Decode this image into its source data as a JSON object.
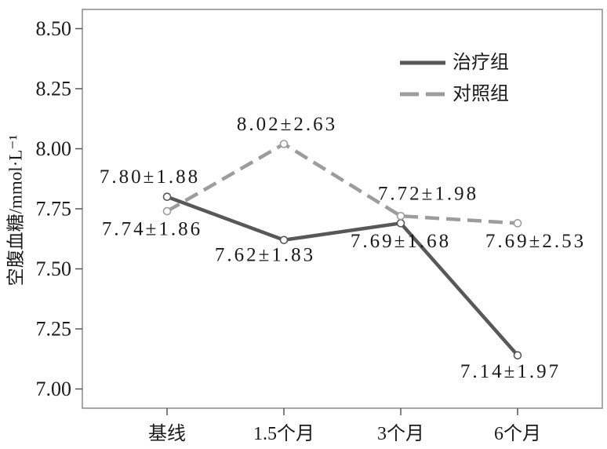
{
  "chart_data": {
    "type": "line",
    "ylabel": "空腹血糖/mmol·L⁻¹",
    "categories": [
      "基线",
      "1.5个月",
      "3个月",
      "6个月"
    ],
    "yticks": [
      "7.00",
      "7.25",
      "7.50",
      "7.75",
      "8.00",
      "8.25",
      "8.50"
    ],
    "ylim": [
      6.92,
      8.58
    ],
    "grid": false,
    "legend": "top-right",
    "series": [
      {
        "name": "治疗组",
        "values": [
          7.8,
          7.62,
          7.69,
          7.14
        ],
        "labels": [
          "7.80±1.88",
          "7.62±1.83",
          "7.69±1.68",
          "7.14±1.97"
        ],
        "color": "#585858",
        "dashed": false
      },
      {
        "name": "对照组",
        "values": [
          7.74,
          8.02,
          7.72,
          7.69
        ],
        "labels": [
          "7.74±1.86",
          "8.02±2.63",
          "7.72±1.98",
          "7.69±2.53"
        ],
        "color": "#9c9c9c",
        "dashed": true
      }
    ]
  }
}
